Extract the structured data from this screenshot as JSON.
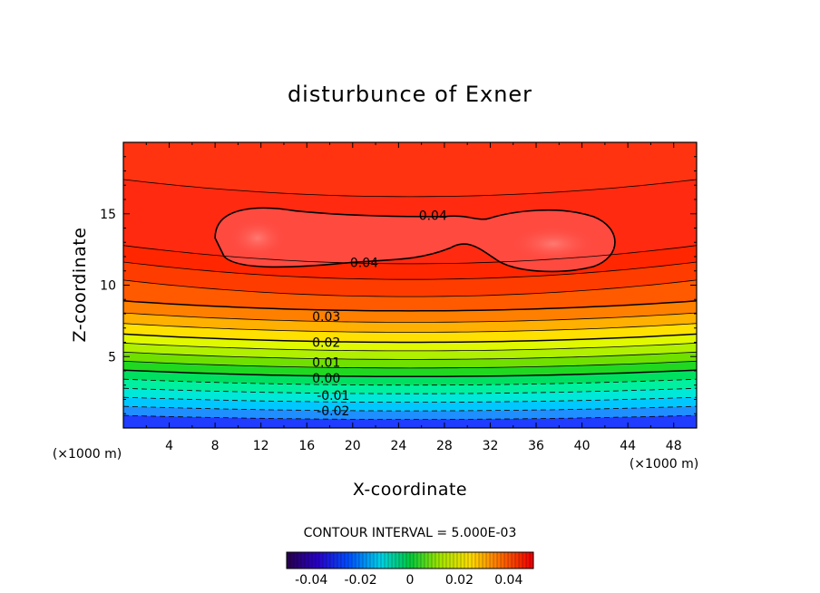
{
  "chart_data": {
    "type": "contour",
    "title": "disturbunce of Exner",
    "xlabel": "X-coordinate",
    "ylabel": "Z-coordinate",
    "x_unit": "(×1000 m)",
    "y_unit": "(×1000 m)",
    "xlim": [
      0,
      50
    ],
    "ylim": [
      0,
      20
    ],
    "x_ticks": [
      4,
      8,
      12,
      16,
      20,
      24,
      28,
      32,
      36,
      40,
      44,
      48
    ],
    "y_ticks": [
      5,
      10,
      15
    ],
    "contour_interval_text": "CONTOUR INTERVAL = 5.000E-03",
    "contour_labels": [
      {
        "text": "0.04",
        "x": 27,
        "z": 14.9
      },
      {
        "text": "0.04",
        "x": 21,
        "z": 11.6
      },
      {
        "text": "0.03",
        "x": 17.7,
        "z": 7.8
      },
      {
        "text": "0.02",
        "x": 17.7,
        "z": 6.0
      },
      {
        "text": "0.01",
        "x": 17.7,
        "z": 4.6
      },
      {
        "text": "0.00",
        "x": 17.7,
        "z": 3.5
      },
      {
        "text": "-0.01",
        "x": 18.3,
        "z": 2.3
      },
      {
        "text": "-0.02",
        "x": 18.3,
        "z": 1.2
      }
    ],
    "colorbar": {
      "min": -0.05,
      "max": 0.05,
      "tick_values": [
        -0.04,
        -0.02,
        0,
        0.02,
        0.04
      ],
      "tick_labels": [
        "-0.04",
        "-0.02",
        "0",
        "0.02",
        "0.04"
      ]
    },
    "bands": [
      {
        "level": 0.0,
        "color": "#1f3cff"
      },
      {
        "level": 0.6,
        "color": "#1f8fff"
      },
      {
        "level": 1.2,
        "color": "#00c8ff"
      },
      {
        "level": 1.8,
        "color": "#00e8d8"
      },
      {
        "level": 2.4,
        "color": "#00f0a0"
      },
      {
        "level": 3.0,
        "color": "#00e060"
      },
      {
        "level": 3.6,
        "color": "#20d820"
      },
      {
        "level": 4.2,
        "color": "#70e000"
      },
      {
        "level": 4.8,
        "color": "#b0f000"
      },
      {
        "level": 5.4,
        "color": "#e0f800"
      },
      {
        "level": 6.0,
        "color": "#ffe000"
      },
      {
        "level": 6.7,
        "color": "#ffb000"
      },
      {
        "level": 7.4,
        "color": "#ff8000"
      },
      {
        "level": 8.2,
        "color": "#ff5a00"
      },
      {
        "level": 9.2,
        "color": "#ff3c00"
      },
      {
        "level": 10.4,
        "color": "#ff2600"
      },
      {
        "level": 11.5,
        "color": "#ff2a10"
      }
    ],
    "colors": {
      "inner_core": "#ff4a40",
      "core_highlight": "#ff6e66",
      "top_band": "#ff4800"
    }
  }
}
